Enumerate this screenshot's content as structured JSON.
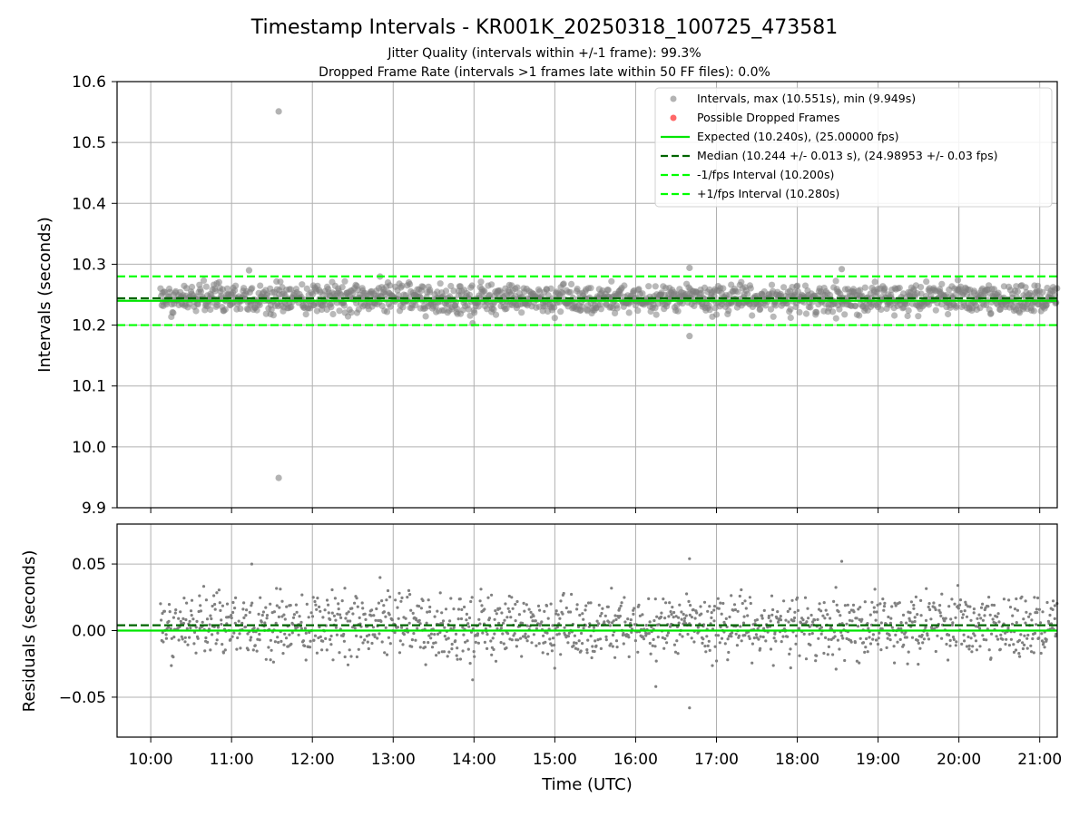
{
  "figure": {
    "title": "Timestamp Intervals - KR001K_20250318_100725_473581",
    "subtitle_1": "Jitter Quality (intervals within +/-1 frame): 99.3%",
    "subtitle_2": "Dropped Frame Rate (intervals >1 frames late within 50 FF files): 0.0%"
  },
  "colors": {
    "points": "#808080",
    "dropped": "#ff4d4d",
    "expected": "#00e600",
    "median": "#006400",
    "bounds": "#00ff00",
    "grid": "#b0b0b0"
  },
  "chart_data": [
    {
      "type": "scatter",
      "ylabel": "Intervals (seconds)",
      "ylim": [
        9.9,
        10.6
      ],
      "yticks": [
        "9.9",
        "10.0",
        "10.1",
        "10.2",
        "10.3",
        "10.4",
        "10.5",
        "10.6"
      ],
      "xlim": [
        "09:35",
        "21:13"
      ],
      "xticks": [
        "10:00",
        "11:00",
        "12:00",
        "13:00",
        "14:00",
        "15:00",
        "16:00",
        "17:00",
        "18:00",
        "19:00",
        "20:00",
        "21:00"
      ],
      "grid": true,
      "legend_position": "top-right",
      "series": [
        {
          "name": "Intervals, max (10.551s), min (9.949s)",
          "kind": "points",
          "x_range": [
            "10:07",
            "21:13"
          ],
          "y_median": 10.244,
          "y_std": 0.013,
          "outliers": [
            {
              "x": "11:35",
              "y": 10.551
            },
            {
              "x": "11:35",
              "y": 9.949
            },
            {
              "x": "16:40",
              "y": 10.182
            },
            {
              "x": "16:40",
              "y": 10.294
            },
            {
              "x": "11:13",
              "y": 10.29
            },
            {
              "x": "18:33",
              "y": 10.292
            }
          ]
        },
        {
          "name": "Possible Dropped Frames",
          "kind": "points",
          "values": []
        },
        {
          "name": "Expected (10.240s), (25.00000 fps)",
          "kind": "hline",
          "y": 10.24,
          "style": "solid"
        },
        {
          "name": "Median (10.244 +/- 0.013 s), (24.98953 +/- 0.03 fps)",
          "kind": "hline",
          "y": 10.244,
          "style": "dashed"
        },
        {
          "name": "-1/fps Interval (10.200s)",
          "kind": "hline",
          "y": 10.2,
          "style": "dashed"
        },
        {
          "name": "+1/fps Interval (10.280s)",
          "kind": "hline",
          "y": 10.28,
          "style": "dashed"
        }
      ]
    },
    {
      "type": "scatter",
      "ylabel": "Residuals (seconds)",
      "xlabel": "Time (UTC)",
      "ylim": [
        -0.08,
        0.08
      ],
      "yticks": [
        "−0.05",
        "0.00",
        "0.05"
      ],
      "ytick_values": [
        -0.05,
        0.0,
        0.05
      ],
      "xlim": [
        "09:35",
        "21:13"
      ],
      "xticks": [
        "10:00",
        "11:00",
        "12:00",
        "13:00",
        "14:00",
        "15:00",
        "16:00",
        "17:00",
        "18:00",
        "19:00",
        "20:00",
        "21:00"
      ],
      "grid": true,
      "series": [
        {
          "kind": "points",
          "x_range": [
            "10:07",
            "21:13"
          ],
          "band_low_center": 0.0,
          "band_high_center": 0.02,
          "outliers": [
            {
              "x": "11:15",
              "y": 0.05
            },
            {
              "x": "16:40",
              "y": 0.054
            },
            {
              "x": "18:33",
              "y": 0.052
            },
            {
              "x": "16:40",
              "y": -0.058
            },
            {
              "x": "16:15",
              "y": -0.042
            }
          ]
        },
        {
          "kind": "hline",
          "y": 0.0,
          "style": "solid"
        },
        {
          "kind": "hline",
          "y": 0.004,
          "style": "dashed"
        }
      ]
    }
  ]
}
